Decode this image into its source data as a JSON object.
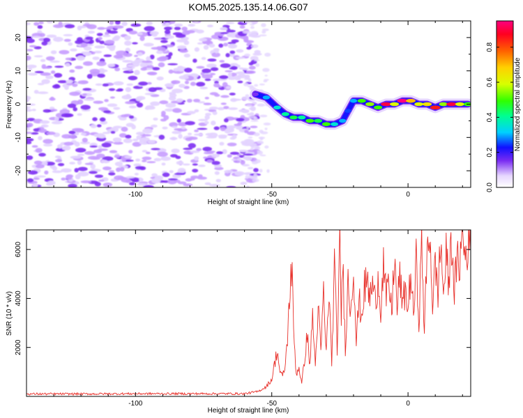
{
  "title": "KOM5.2025.135.14.06.G07",
  "colors": {
    "trace": "#e8302a",
    "noise": "#9a5cf0",
    "frame": "#000000",
    "background": "#ffffff"
  },
  "chart_data": [
    {
      "type": "heatmap",
      "xlabel": "Height of straight line (km)",
      "ylabel": "Frequency (Hz)",
      "xlim": [
        -140,
        23
      ],
      "ylim": [
        -25,
        25
      ],
      "x_ticks": [
        -100,
        -50,
        0
      ],
      "y_ticks": [
        -20,
        -10,
        0,
        10,
        20
      ],
      "colorbar": {
        "label": "Normalized spectral amplitude",
        "range": [
          0.0,
          0.95
        ],
        "ticks": [
          "0.0",
          "0.2",
          "0.4",
          "0.6",
          "0.8"
        ],
        "tick_values": [
          0.0,
          0.2,
          0.4,
          0.6,
          0.8
        ]
      },
      "noise_region": {
        "x_range": [
          -140,
          -55
        ],
        "amplitude": 0.15
      },
      "signal_track": {
        "x": [
          -56,
          -52,
          -48,
          -45,
          -42,
          -39,
          -36,
          -33,
          -30,
          -27,
          -24,
          -22,
          -20,
          -17,
          -14,
          -11,
          -8,
          -5,
          -2,
          1,
          4,
          7,
          10,
          13,
          16,
          19,
          22
        ],
        "frequency_hz": [
          3,
          2,
          -1,
          -3,
          -4,
          -4,
          -5,
          -5,
          -6,
          -6,
          -5,
          -2,
          1,
          1,
          0,
          -1,
          0,
          0,
          1,
          1,
          0,
          0,
          -1,
          0,
          0,
          0,
          0
        ],
        "amplitude": [
          0.15,
          0.3,
          0.35,
          0.4,
          0.45,
          0.4,
          0.5,
          0.45,
          0.5,
          0.35,
          0.3,
          0.25,
          0.3,
          0.5,
          0.55,
          0.5,
          0.9,
          0.6,
          0.95,
          0.7,
          0.6,
          0.65,
          0.85,
          0.55,
          0.9,
          0.6,
          0.5
        ]
      }
    },
    {
      "type": "line",
      "xlabel": "Height of straight line (km)",
      "ylabel": "SNR (10 * v/v)",
      "xlim": [
        -140,
        23
      ],
      "ylim": [
        0,
        6800
      ],
      "x_ticks": [
        -100,
        -50,
        0
      ],
      "y_ticks": [
        2000,
        4000,
        6000
      ],
      "series": [
        {
          "x": [
            -140,
            -120,
            -100,
            -80,
            -60,
            -55,
            -52,
            -50,
            -48,
            -47,
            -46,
            -45,
            -44,
            -43,
            -42.5,
            -42,
            -41,
            -40,
            -39,
            -38,
            -37,
            -36,
            -35,
            -34,
            -33,
            -32,
            -31,
            -30,
            -29,
            -28,
            -27,
            -26,
            -25,
            -24.5,
            -24,
            -23,
            -22,
            -21,
            -20,
            -19,
            -18,
            -17,
            -16,
            -15,
            -14,
            -13,
            -12,
            -11,
            -10,
            -9,
            -8,
            -7,
            -6,
            -5,
            -4,
            -3,
            -2,
            -1,
            0,
            1,
            2,
            3,
            4,
            5,
            6,
            7,
            8,
            9,
            10,
            11,
            12,
            13,
            14,
            15,
            16,
            17,
            18,
            19,
            20,
            21,
            22,
            23
          ],
          "y": [
            100,
            100,
            110,
            110,
            110,
            200,
            400,
            700,
            1900,
            1000,
            800,
            1300,
            2800,
            5200,
            4800,
            2700,
            900,
            1200,
            500,
            1500,
            2500,
            1300,
            3300,
            1200,
            3700,
            1800,
            4200,
            1700,
            4400,
            1300,
            5300,
            2000,
            6100,
            3200,
            5600,
            2000,
            4700,
            3500,
            5500,
            2200,
            3900,
            3300,
            4400,
            4700,
            4000,
            4600,
            3800,
            4900,
            3600,
            5400,
            3900,
            4600,
            3300,
            5800,
            3500,
            5000,
            3600,
            4400,
            3500,
            5100,
            3200,
            5500,
            3100,
            6200,
            2700,
            5700,
            6800,
            3800,
            5300,
            4300,
            6300,
            4200,
            5700,
            4600,
            6500,
            4400,
            5400,
            5500,
            6600,
            5700,
            6300,
            5900
          ]
        }
      ]
    }
  ]
}
